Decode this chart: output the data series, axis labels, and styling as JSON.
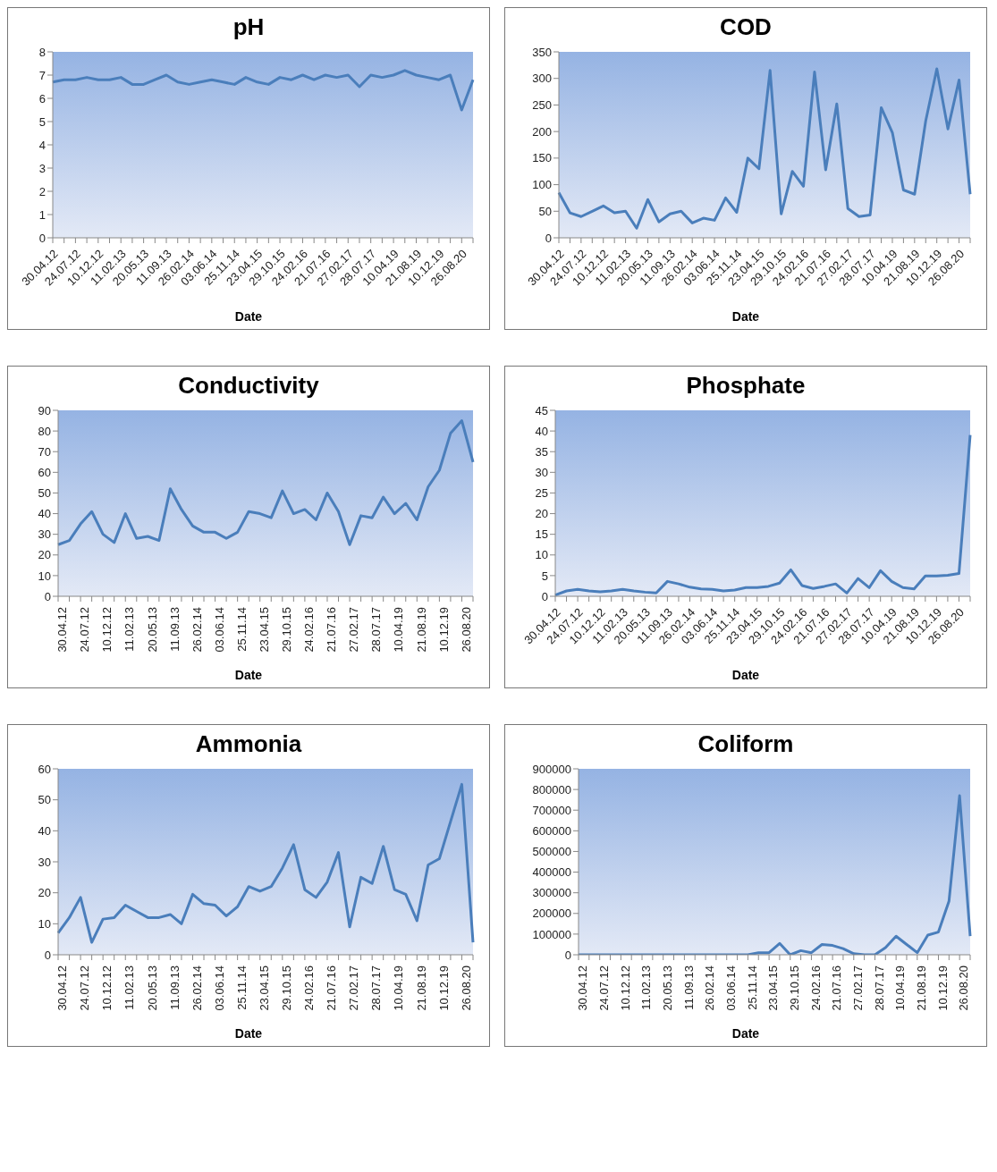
{
  "chart_data": [
    {
      "type": "line",
      "title": "pH",
      "xlabel": "Date",
      "categories": [
        "30.04.12",
        null,
        "24.07.12",
        null,
        "10.12.12",
        null,
        "11.02.13",
        null,
        "20.05.13",
        null,
        "11.09.13",
        null,
        "26.02.14",
        null,
        "03.06.14",
        null,
        "25.11.14",
        null,
        "23.04.15",
        null,
        "29.10.15",
        null,
        "24.02.16",
        null,
        "21.07.16",
        null,
        "27.02.17",
        null,
        "28.07.17",
        null,
        "10.04.19",
        null,
        "21.08.19",
        null,
        "10.12.19",
        null,
        "26.08.20",
        null
      ],
      "series": [
        {
          "color": "#4a7ebb",
          "values": [
            6.7,
            6.8,
            6.8,
            6.9,
            6.8,
            6.8,
            6.9,
            6.6,
            6.6,
            6.8,
            7.0,
            6.7,
            6.6,
            6.7,
            6.8,
            6.7,
            6.6,
            6.9,
            6.7,
            6.6,
            6.9,
            6.8,
            7.0,
            6.8,
            7.0,
            6.9,
            7.0,
            6.5,
            7.0,
            6.9,
            7.0,
            7.2,
            7.0,
            6.9,
            6.8,
            7.0,
            5.5,
            6.8
          ]
        }
      ],
      "ylim": [
        0,
        8
      ],
      "yticks": [
        0,
        1,
        2,
        3,
        4,
        5,
        6,
        7,
        8
      ],
      "grid": false,
      "legend": false,
      "marker": "none",
      "line_style": "solid"
    },
    {
      "type": "line",
      "title": "COD",
      "xlabel": "Date",
      "categories": [
        "30.04.12",
        null,
        "24.07.12",
        null,
        "10.12.12",
        null,
        "11.02.13",
        null,
        "20.05.13",
        null,
        "11.09.13",
        null,
        "26.02.14",
        null,
        "03.06.14",
        null,
        "25.11.14",
        null,
        "23.04.15",
        null,
        "29.10.15",
        null,
        "24.02.16",
        null,
        "21.07.16",
        null,
        "27.02.17",
        null,
        "28.07.17",
        null,
        "10.04.19",
        null,
        "21.08.19",
        null,
        "10.12.19",
        null,
        "26.08.20",
        null
      ],
      "series": [
        {
          "color": "#4a7ebb",
          "values": [
            85,
            47,
            40,
            50,
            60,
            47,
            50,
            18,
            72,
            30,
            45,
            50,
            28,
            37,
            33,
            75,
            48,
            150,
            130,
            315,
            45,
            125,
            97,
            312,
            128,
            252,
            55,
            40,
            43,
            245,
            198,
            90,
            82,
            220,
            318,
            205,
            297,
            82
          ]
        }
      ],
      "ylim": [
        0,
        350
      ],
      "yticks": [
        0,
        50,
        100,
        150,
        200,
        250,
        300,
        350
      ],
      "grid": false,
      "legend": false,
      "marker": "none",
      "line_style": "solid"
    },
    {
      "type": "line",
      "title": "Conductivity",
      "xlabel": "Date",
      "categories": [
        "30.04.12",
        null,
        "24.07.12",
        null,
        "10.12.12",
        null,
        "11.02.13",
        null,
        "20.05.13",
        null,
        "11.09.13",
        null,
        "26.02.14",
        null,
        "03.06.14",
        null,
        "25.11.14",
        null,
        "23.04.15",
        null,
        "29.10.15",
        null,
        "24.02.16",
        null,
        "21.07.16",
        null,
        "27.02.17",
        null,
        "28.07.17",
        null,
        "10.04.19",
        null,
        "21.08.19",
        null,
        "10.12.19",
        null,
        "26.08.20",
        null
      ],
      "series": [
        {
          "color": "#4a7ebb",
          "values": [
            25,
            27,
            35,
            41,
            30,
            26,
            40,
            28,
            29,
            27,
            52,
            42,
            34,
            31,
            31,
            28,
            31,
            41,
            40,
            38,
            51,
            40,
            42,
            37,
            50,
            41,
            25,
            39,
            38,
            48,
            40,
            45,
            37,
            53,
            61,
            79,
            85,
            65
          ]
        }
      ],
      "ylim": [
        0,
        90
      ],
      "yticks": [
        0,
        10,
        20,
        30,
        40,
        50,
        60,
        70,
        80,
        90
      ],
      "grid": false,
      "legend": false,
      "marker": "none",
      "line_style": "solid"
    },
    {
      "type": "line",
      "title": "Phosphate",
      "xlabel": "Date",
      "categories": [
        "30.04.12",
        null,
        "24.07.12",
        null,
        "10.12.12",
        null,
        "11.02.13",
        null,
        "20.05.13",
        null,
        "11.09.13",
        null,
        "26.02.14",
        null,
        "03.06.14",
        null,
        "25.11.14",
        null,
        "23.04.15",
        null,
        "29.10.15",
        null,
        "24.02.16",
        null,
        "21.07.16",
        null,
        "27.02.17",
        null,
        "28.07.17",
        null,
        "10.04.19",
        null,
        "21.08.19",
        null,
        "10.12.19",
        null,
        "26.08.20",
        null
      ],
      "series": [
        {
          "color": "#4a7ebb",
          "values": [
            0.3,
            1.3,
            1.7,
            1.3,
            1.1,
            1.3,
            1.7,
            1.3,
            1.0,
            0.8,
            3.6,
            3.0,
            2.2,
            1.8,
            1.7,
            1.3,
            1.5,
            2.1,
            2.1,
            2.4,
            3.2,
            6.4,
            2.6,
            1.9,
            2.4,
            3.0,
            0.8,
            4.3,
            2.1,
            6.2,
            3.6,
            2.1,
            1.8,
            4.9,
            4.9,
            5.1,
            5.5,
            39
          ]
        }
      ],
      "ylim": [
        0,
        45
      ],
      "yticks": [
        0,
        5,
        10,
        15,
        20,
        25,
        30,
        35,
        40,
        45
      ],
      "grid": false,
      "legend": false,
      "marker": "none",
      "line_style": "solid"
    },
    {
      "type": "line",
      "title": "Ammonia",
      "xlabel": "Date",
      "categories": [
        "30.04.12",
        null,
        "24.07.12",
        null,
        "10.12.12",
        null,
        "11.02.13",
        null,
        "20.05.13",
        null,
        "11.09.13",
        null,
        "26.02.14",
        null,
        "03.06.14",
        null,
        "25.11.14",
        null,
        "23.04.15",
        null,
        "29.10.15",
        null,
        "24.02.16",
        null,
        "21.07.16",
        null,
        "27.02.17",
        null,
        "28.07.17",
        null,
        "10.04.19",
        null,
        "21.08.19",
        null,
        "10.12.19",
        null,
        "26.08.20",
        null
      ],
      "series": [
        {
          "color": "#4a7ebb",
          "values": [
            7,
            12,
            18.5,
            4,
            11.5,
            12,
            16,
            14,
            12,
            12,
            13,
            10,
            19.5,
            16.5,
            16,
            12.5,
            15.5,
            22,
            20.5,
            22,
            28,
            35.5,
            21,
            18.5,
            23.5,
            33,
            9,
            25,
            23,
            35,
            21,
            19.5,
            11,
            29,
            31,
            43,
            55,
            4
          ]
        }
      ],
      "ylim": [
        0,
        60
      ],
      "yticks": [
        0,
        10,
        20,
        30,
        40,
        50,
        60
      ],
      "grid": false,
      "legend": false,
      "marker": "none",
      "line_style": "solid"
    },
    {
      "type": "line",
      "title": "Coliform",
      "xlabel": "Date",
      "categories": [
        "30.04.12",
        null,
        "24.07.12",
        null,
        "10.12.12",
        null,
        "11.02.13",
        null,
        "20.05.13",
        null,
        "11.09.13",
        null,
        "26.02.14",
        null,
        "03.06.14",
        null,
        "25.11.14",
        null,
        "23.04.15",
        null,
        "29.10.15",
        null,
        "24.02.16",
        null,
        "21.07.16",
        null,
        "27.02.17",
        null,
        "28.07.17",
        null,
        "10.04.19",
        null,
        "21.08.19",
        null,
        "10.12.19",
        null,
        "26.08.20",
        null
      ],
      "series": [
        {
          "color": "#4a7ebb",
          "values": [
            0,
            0,
            0,
            0,
            0,
            0,
            0,
            0,
            0,
            0,
            0,
            0,
            0,
            0,
            0,
            0,
            0,
            10000,
            10000,
            55000,
            0,
            20000,
            10000,
            50000,
            45000,
            30000,
            5000,
            0,
            0,
            35000,
            90000,
            50000,
            10000,
            95000,
            110000,
            260000,
            770000,
            90000
          ]
        }
      ],
      "ylim": [
        0,
        900000
      ],
      "yticks": [
        0,
        100000,
        200000,
        300000,
        400000,
        500000,
        600000,
        700000,
        800000,
        900000
      ],
      "grid": false,
      "legend": false,
      "marker": "none",
      "line_style": "solid"
    }
  ]
}
